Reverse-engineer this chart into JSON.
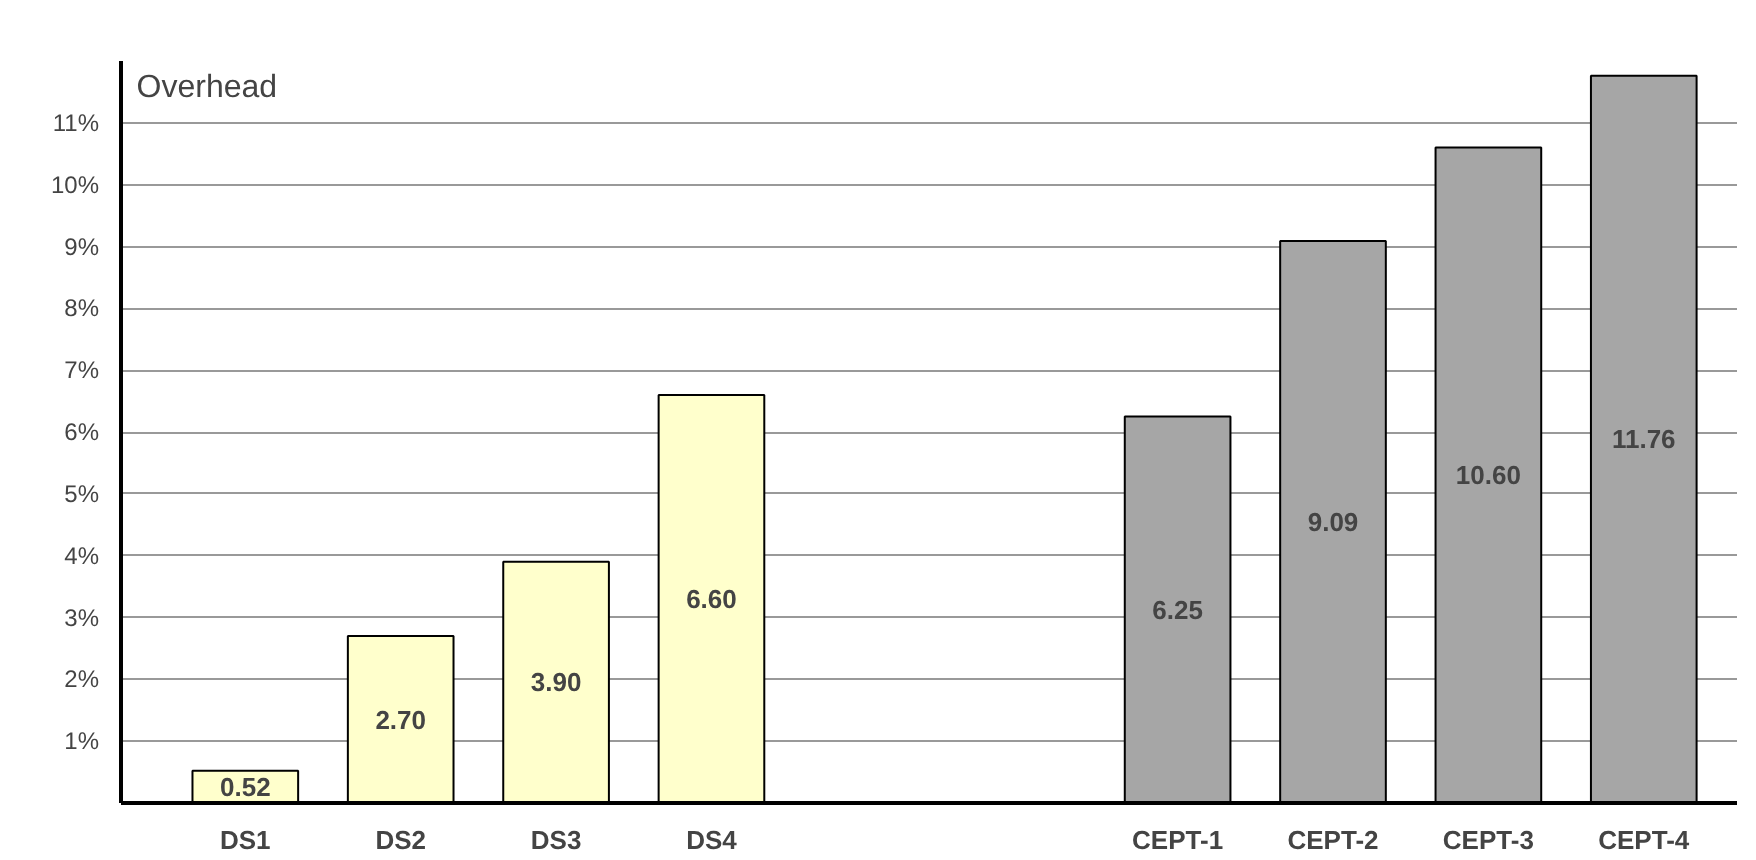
{
  "chart_data": {
    "type": "bar",
    "ylabel": "Overhead",
    "categories": [
      "DS1",
      "DS2",
      "DS3",
      "DS4",
      null,
      null,
      "CEPT-1",
      "CEPT-2",
      "CEPT-3",
      "CEPT-4"
    ],
    "values": [
      0.52,
      2.7,
      3.9,
      6.6,
      null,
      null,
      6.25,
      9.09,
      10.6,
      11.76
    ],
    "value_labels": [
      "0.52",
      "2.70",
      "3.90",
      "6.60",
      null,
      null,
      "6.25",
      "9.09",
      "10.60",
      "11.76"
    ],
    "colors": [
      "#ffffcc",
      "#ffffcc",
      "#ffffcc",
      "#ffffcc",
      null,
      null,
      "#a6a6a6",
      "#a6a6a6",
      "#a6a6a6",
      "#a6a6a6"
    ],
    "ylim": [
      0,
      12
    ],
    "yticks": [
      {
        "value": 0,
        "label": null
      },
      {
        "value": 1,
        "label": "1%"
      },
      {
        "value": 2,
        "label": "2%"
      },
      {
        "value": 3,
        "label": "3%"
      },
      {
        "value": 4,
        "label": "4%"
      },
      {
        "value": 5,
        "label": "5%"
      },
      {
        "value": 6,
        "label": "6%"
      },
      {
        "value": 7,
        "label": "7%"
      },
      {
        "value": 8,
        "label": "8%"
      },
      {
        "value": 9,
        "label": "9%"
      },
      {
        "value": 10,
        "label": "10%"
      },
      {
        "value": 11,
        "label": "11%"
      }
    ],
    "grid": "y"
  }
}
